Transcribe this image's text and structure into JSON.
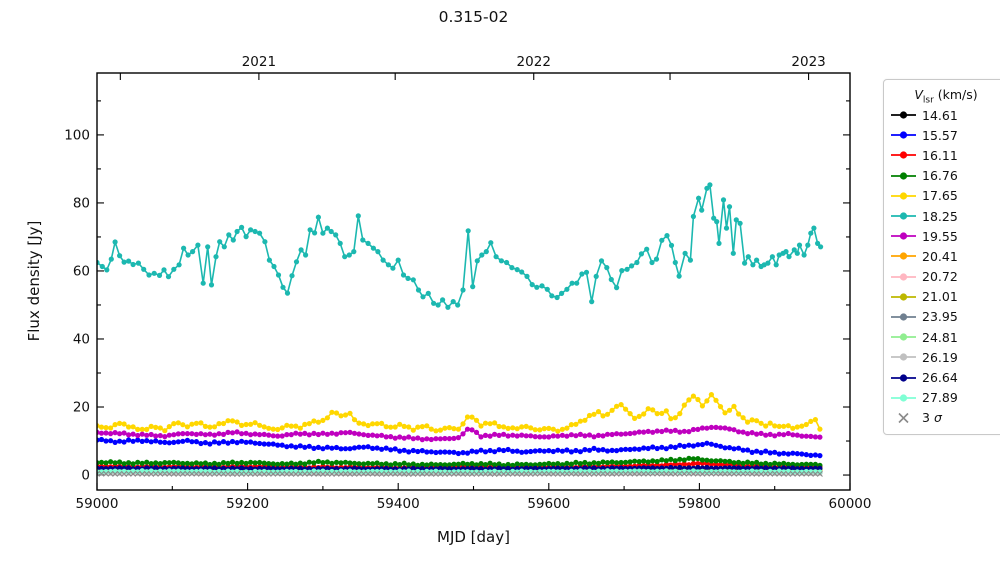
{
  "figure": {
    "title": "0.315-02",
    "xlabel": "MJD [day]",
    "ylabel": "Flux density [Jy]",
    "legend_title_var": "V",
    "legend_title_sub": "lsr",
    "legend_title_unit": " (km/s)"
  },
  "chart_data": {
    "type": "line",
    "title": "0.315-02",
    "xlabel": "MJD [day]",
    "ylabel": "Flux density [Jy]",
    "legend_title": "V_lsr (km/s)",
    "legend_position": "outside-right",
    "grid": false,
    "xlim": [
      59000,
      60000
    ],
    "ylim": [
      -4.4,
      118.2
    ],
    "x_ticks": [
      59000,
      59200,
      59400,
      59600,
      59800,
      60000
    ],
    "x_minor_ticks": [
      59100,
      59300,
      59500,
      59700,
      59900
    ],
    "y_ticks": [
      0,
      20,
      40,
      60,
      80,
      100
    ],
    "y_minor_ticks": [
      10,
      30,
      50,
      70,
      90,
      110
    ],
    "top_axis_ticks": [
      {
        "mjd": 59031,
        "label": ""
      },
      {
        "mjd": 59215,
        "label": "2021"
      },
      {
        "mjd": 59396,
        "label": ""
      },
      {
        "mjd": 59580,
        "label": "2022"
      },
      {
        "mjd": 59761,
        "label": ""
      },
      {
        "mjd": 59945,
        "label": "2023"
      }
    ],
    "series": [
      {
        "label": "14.61",
        "color": "#000000",
        "marker": "o",
        "sample_step": 6,
        "jitter": 0.18,
        "seed": 1,
        "x": [
          59000,
          59200,
          59400,
          59600,
          59800,
          59960
        ],
        "values": [
          1.8,
          1.7,
          1.6,
          1.7,
          1.9,
          1.7
        ]
      },
      {
        "label": "15.57",
        "color": "#0000ff",
        "marker": "o",
        "sample_step": 6,
        "jitter": 0.35,
        "seed": 2,
        "x": [
          59000,
          59030,
          59060,
          59090,
          59120,
          59150,
          59180,
          59210,
          59240,
          59270,
          59300,
          59330,
          59360,
          59390,
          59420,
          59450,
          59480,
          59510,
          59540,
          59570,
          59600,
          59630,
          59660,
          59690,
          59720,
          59750,
          59780,
          59810,
          59840,
          59870,
          59900,
          59930,
          59960
        ],
        "values": [
          10.3,
          9.8,
          10.2,
          9.5,
          10.0,
          9.3,
          9.8,
          9.5,
          8.8,
          8.3,
          8.0,
          7.8,
          8.2,
          7.5,
          7.0,
          6.8,
          6.5,
          7.0,
          7.3,
          6.8,
          7.2,
          7.0,
          7.5,
          7.2,
          7.8,
          8.0,
          8.5,
          9.2,
          8.0,
          7.0,
          6.5,
          6.2,
          5.8
        ]
      },
      {
        "label": "16.11",
        "color": "#ff0000",
        "marker": "o",
        "sample_step": 6,
        "jitter": 0.25,
        "seed": 3,
        "x": [
          59000,
          59100,
          59200,
          59300,
          59400,
          59500,
          59600,
          59700,
          59760,
          59800,
          59840,
          59900,
          59960
        ],
        "values": [
          2.6,
          2.4,
          2.5,
          2.3,
          2.2,
          2.6,
          2.3,
          2.6,
          3.0,
          3.4,
          3.0,
          2.5,
          2.3
        ]
      },
      {
        "label": "16.76",
        "color": "#008000",
        "marker": "o",
        "sample_step": 6,
        "jitter": 0.3,
        "seed": 4,
        "x": [
          59000,
          59050,
          59100,
          59150,
          59200,
          59250,
          59300,
          59350,
          59400,
          59450,
          59500,
          59550,
          59600,
          59650,
          59700,
          59750,
          59790,
          59820,
          59860,
          59900,
          59960
        ],
        "values": [
          3.8,
          3.5,
          3.6,
          3.3,
          3.7,
          3.2,
          3.8,
          3.4,
          3.2,
          3.0,
          3.3,
          3.0,
          3.2,
          3.5,
          3.8,
          4.2,
          4.8,
          4.2,
          3.6,
          3.3,
          3.0
        ]
      },
      {
        "label": "17.65",
        "color": "#ffd700",
        "marker": "o",
        "sample_step": 6,
        "jitter": 0.35,
        "seed": 5,
        "x": [
          59000,
          59015,
          59030,
          59045,
          59060,
          59075,
          59090,
          59105,
          59120,
          59135,
          59150,
          59165,
          59180,
          59195,
          59210,
          59225,
          59240,
          59255,
          59270,
          59285,
          59300,
          59315,
          59325,
          59335,
          59345,
          59360,
          59375,
          59390,
          59405,
          59420,
          59435,
          59450,
          59465,
          59480,
          59495,
          59510,
          59525,
          59540,
          59555,
          59570,
          59585,
          59600,
          59615,
          59630,
          59645,
          59655,
          59665,
          59675,
          59685,
          59695,
          59705,
          59715,
          59725,
          59735,
          59745,
          59755,
          59765,
          59775,
          59785,
          59795,
          59805,
          59815,
          59825,
          59835,
          59845,
          59855,
          59865,
          59875,
          59885,
          59895,
          59905,
          59915,
          59925,
          59935,
          59945,
          59953,
          59960
        ],
        "values": [
          14.5,
          13.5,
          15.5,
          14.0,
          13.2,
          14.5,
          13.0,
          15.8,
          14.2,
          15.5,
          14.0,
          15.0,
          16.2,
          14.5,
          15.2,
          14.0,
          13.2,
          14.8,
          14.0,
          15.5,
          16.0,
          18.8,
          17.0,
          18.5,
          15.5,
          14.5,
          15.5,
          13.8,
          14.8,
          13.5,
          14.5,
          13.0,
          14.0,
          13.3,
          18.0,
          14.5,
          15.5,
          14.0,
          13.5,
          14.5,
          13.0,
          13.8,
          13.0,
          14.5,
          16.0,
          17.5,
          18.5,
          17.0,
          19.5,
          21.0,
          18.5,
          16.5,
          18.0,
          20.0,
          17.5,
          19.0,
          16.0,
          18.5,
          22.0,
          23.5,
          20.0,
          23.8,
          21.0,
          18.0,
          20.5,
          17.0,
          15.5,
          16.5,
          14.5,
          15.0,
          14.0,
          14.8,
          13.8,
          14.2,
          15.0,
          17.0,
          13.5
        ]
      },
      {
        "label": "18.25",
        "color": "#1cb8b0",
        "marker": "o",
        "sample_step": 0,
        "jitter": 0,
        "seed": 6,
        "x": [
          59000,
          59007,
          59013,
          59019,
          59024,
          59030,
          59036,
          59042,
          59048,
          59055,
          59062,
          59069,
          59076,
          59083,
          59089,
          59095,
          59102,
          59109,
          59115,
          59121,
          59127,
          59134,
          59141,
          59147,
          59152,
          59158,
          59163,
          59169,
          59175,
          59181,
          59186,
          59192,
          59198,
          59204,
          59210,
          59216,
          59223,
          59229,
          59235,
          59241,
          59247,
          59253,
          59259,
          59265,
          59271,
          59277,
          59283,
          59289,
          59294,
          59300,
          59306,
          59311,
          59317,
          59323,
          59329,
          59335,
          59341,
          59347,
          59353,
          59360,
          59367,
          59373,
          59380,
          59387,
          59393,
          59400,
          59407,
          59413,
          59420,
          59427,
          59433,
          59440,
          59447,
          59453,
          59459,
          59466,
          59473,
          59479,
          59486,
          59493,
          59499,
          59505,
          59511,
          59517,
          59523,
          59530,
          59537,
          59544,
          59551,
          59558,
          59564,
          59571,
          59578,
          59584,
          59591,
          59598,
          59604,
          59611,
          59617,
          59624,
          59631,
          59637,
          59644,
          59650,
          59657,
          59663,
          59670,
          59677,
          59683,
          59690,
          59697,
          59704,
          59710,
          59717,
          59723,
          59730,
          59737,
          59743,
          59750,
          59757,
          59763,
          59768,
          59773,
          59781,
          59788,
          59792,
          59799,
          59803,
          59810,
          59814,
          59819,
          59823,
          59826,
          59832,
          59836,
          59840,
          59845,
          59849,
          59854,
          59860,
          59865,
          59871,
          59876,
          59882,
          59886,
          59891,
          59897,
          59902,
          59906,
          59911,
          59915,
          59919,
          59926,
          59930,
          59933,
          59939,
          59944,
          59948,
          59952,
          59957,
          59961
        ],
        "values": [
          62.5,
          61.3,
          60.3,
          63.5,
          68.5,
          64.5,
          62.6,
          62.9,
          61.9,
          62.3,
          60.5,
          58.8,
          59.3,
          58.7,
          60.3,
          58.3,
          60.5,
          61.8,
          66.7,
          64.7,
          65.7,
          67.6,
          56.4,
          67.1,
          55.9,
          64.2,
          68.6,
          67.1,
          70.6,
          69.1,
          71.6,
          72.8,
          70.1,
          72.1,
          71.6,
          71.1,
          68.6,
          63.2,
          61.3,
          58.8,
          55.2,
          53.5,
          58.6,
          62.7,
          66.2,
          64.7,
          72.1,
          71.2,
          75.8,
          71.1,
          72.6,
          71.6,
          70.6,
          68.1,
          64.2,
          64.7,
          65.7,
          76.2,
          69.1,
          68.1,
          66.7,
          65.7,
          63.2,
          61.8,
          60.8,
          63.2,
          58.8,
          57.8,
          57.4,
          54.4,
          52.4,
          53.4,
          50.5,
          50.0,
          51.5,
          49.3,
          51.0,
          50.0,
          54.4,
          71.8,
          55.4,
          63.0,
          64.7,
          65.7,
          68.3,
          64.2,
          63.0,
          62.5,
          61.0,
          60.4,
          59.7,
          58.4,
          56.0,
          55.2,
          55.6,
          54.6,
          52.7,
          52.2,
          53.4,
          54.6,
          56.4,
          56.4,
          59.1,
          59.6,
          51.0,
          58.4,
          63.0,
          61.0,
          57.5,
          55.1,
          60.1,
          60.5,
          61.5,
          62.5,
          65.0,
          66.4,
          62.5,
          63.5,
          69.0,
          70.4,
          67.5,
          62.5,
          58.5,
          65.2,
          63.2,
          76.0,
          81.4,
          77.9,
          84.3,
          85.3,
          75.5,
          74.5,
          68.1,
          80.9,
          72.6,
          78.9,
          65.2,
          75.0,
          74.0,
          62.3,
          64.2,
          61.8,
          63.2,
          61.3,
          61.8,
          62.3,
          64.2,
          61.8,
          64.7,
          65.2,
          65.7,
          64.2,
          66.2,
          65.2,
          67.6,
          64.7,
          67.6,
          71.1,
          72.6,
          68.1,
          67.1
        ]
      },
      {
        "label": "19.55",
        "color": "#bf00bf",
        "marker": "o",
        "sample_step": 6,
        "jitter": 0.3,
        "seed": 7,
        "x": [
          59000,
          59030,
          59060,
          59090,
          59120,
          59150,
          59180,
          59210,
          59240,
          59270,
          59300,
          59330,
          59360,
          59390,
          59420,
          59450,
          59480,
          59495,
          59510,
          59540,
          59570,
          59600,
          59630,
          59660,
          59690,
          59720,
          59750,
          59780,
          59800,
          59820,
          59840,
          59860,
          59880,
          59900,
          59920,
          59940,
          59960
        ],
        "values": [
          12.5,
          12.2,
          11.8,
          11.5,
          12.3,
          11.8,
          12.5,
          12.0,
          11.5,
          12.2,
          12.0,
          12.5,
          11.8,
          11.2,
          10.8,
          10.5,
          11.0,
          13.8,
          11.5,
          11.8,
          11.5,
          11.2,
          11.8,
          11.5,
          12.0,
          12.5,
          13.0,
          12.8,
          13.5,
          14.2,
          13.5,
          12.5,
          12.0,
          11.8,
          12.0,
          11.5,
          11.0
        ]
      },
      {
        "label": "20.41",
        "color": "#ffa500",
        "marker": "o",
        "sample_step": 6,
        "jitter": 0.15,
        "seed": 8,
        "x": [
          59000,
          59200,
          59400,
          59600,
          59800,
          59960
        ],
        "values": [
          1.3,
          1.25,
          1.2,
          1.3,
          1.4,
          1.25
        ]
      },
      {
        "label": "20.72",
        "color": "#ffb6c1",
        "marker": "o",
        "sample_step": 6,
        "jitter": 0.12,
        "seed": 9,
        "x": [
          59000,
          59200,
          59400,
          59600,
          59800,
          59960
        ],
        "values": [
          1.0,
          0.95,
          0.9,
          1.0,
          1.1,
          0.95
        ]
      },
      {
        "label": "21.01",
        "color": "#bdb800",
        "marker": "o",
        "sample_step": 6,
        "jitter": 0.18,
        "seed": 10,
        "x": [
          59000,
          59200,
          59400,
          59600,
          59800,
          59960
        ],
        "values": [
          1.5,
          1.6,
          1.4,
          1.6,
          1.8,
          1.5
        ]
      },
      {
        "label": "23.95",
        "color": "#708090",
        "marker": "o",
        "sample_step": 6,
        "jitter": 0.12,
        "seed": 11,
        "x": [
          59000,
          59200,
          59400,
          59600,
          59800,
          59960
        ],
        "values": [
          0.8,
          0.75,
          0.7,
          0.75,
          0.85,
          0.75
        ]
      },
      {
        "label": "24.81",
        "color": "#90ee90",
        "marker": "o",
        "sample_step": 6,
        "jitter": 0.12,
        "seed": 12,
        "x": [
          59000,
          59200,
          59400,
          59600,
          59800,
          59960
        ],
        "values": [
          0.9,
          0.85,
          0.8,
          0.9,
          0.95,
          0.85
        ]
      },
      {
        "label": "26.19",
        "color": "#c0c0c0",
        "marker": "o",
        "sample_step": 6,
        "jitter": 0.1,
        "seed": 13,
        "x": [
          59000,
          59200,
          59400,
          59600,
          59800,
          59960
        ],
        "values": [
          0.6,
          0.55,
          0.5,
          0.55,
          0.6,
          0.55
        ]
      },
      {
        "label": "26.64",
        "color": "#00008b",
        "marker": "o",
        "sample_step": 6,
        "jitter": 0.18,
        "seed": 14,
        "x": [
          59000,
          59200,
          59400,
          59600,
          59800,
          59960
        ],
        "values": [
          2.0,
          1.9,
          1.8,
          1.9,
          2.1,
          1.9
        ]
      },
      {
        "label": "27.89",
        "color": "#7fffd4",
        "marker": "o",
        "sample_step": 6,
        "jitter": 0.22,
        "seed": 15,
        "x": [
          59000,
          59100,
          59200,
          59300,
          59400,
          59500,
          59600,
          59700,
          59800,
          59900,
          59960
        ],
        "values": [
          1.0,
          1.1,
          0.9,
          1.0,
          1.0,
          0.9,
          1.0,
          1.1,
          1.0,
          1.0,
          0.9
        ]
      },
      {
        "label": "3 σ",
        "color": "#8a8a8a",
        "marker": "x",
        "sample_step": 6,
        "jitter": 0.06,
        "seed": 16,
        "x": [
          59000,
          59100,
          59200,
          59300,
          59400,
          59500,
          59600,
          59700,
          59800,
          59900,
          59960
        ],
        "values": [
          0.35,
          0.36,
          0.33,
          0.35,
          0.34,
          0.33,
          0.35,
          0.37,
          0.4,
          0.36,
          0.35
        ]
      }
    ]
  }
}
